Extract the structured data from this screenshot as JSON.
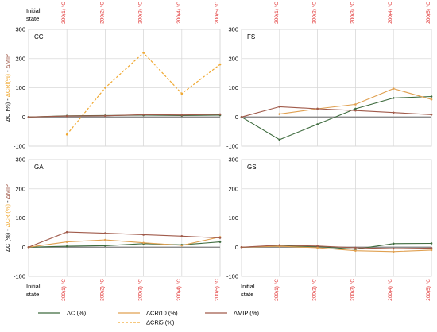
{
  "chart_data": {
    "type": "line",
    "categories": [
      "Initial state",
      "200(1) °C",
      "200(2) °C",
      "200(3) °C",
      "200(4) °C",
      "200(5) °C"
    ],
    "header_label": "Initial state",
    "footer_label": "Initial state",
    "ylim": [
      -100,
      300
    ],
    "yticks": [
      "300",
      "200",
      "100",
      "0",
      "-100"
    ],
    "ylabel": {
      "c": "ΔC (%)",
      "sep": " - ",
      "cri": "ΔCRi(%)",
      "mip": "ΔMIP"
    },
    "colors": {
      "dc": "#3e6b3e",
      "cri10": "#e0a050",
      "cri5": "#f0a830",
      "mip": "#a05a4a",
      "grid": "#d9d9d9",
      "axis": "#7f7f7f",
      "tick_red": "#e03030"
    },
    "legend": [
      {
        "key": "dc",
        "label": "ΔC (%)",
        "dashed": false
      },
      {
        "key": "cri10",
        "label": "ΔCRi10 (%)",
        "dashed": false
      },
      {
        "key": "mip",
        "label": "ΔMIP (%)",
        "dashed": false
      },
      {
        "key": "cri5",
        "label": "ΔCRi5 (%)",
        "dashed": true
      }
    ],
    "panels": [
      {
        "title": "CC",
        "series": [
          {
            "key": "cri5",
            "values": [
              null,
              -60,
              100,
              220,
              80,
              180
            ]
          },
          {
            "key": "dc",
            "values": [
              0,
              4,
              5,
              6,
              5,
              6
            ]
          },
          {
            "key": "mip",
            "values": [
              0,
              3,
              4,
              8,
              7,
              9
            ]
          }
        ]
      },
      {
        "title": "FS",
        "series": [
          {
            "key": "dc",
            "values": [
              0,
              -78,
              -25,
              28,
              65,
              70
            ]
          },
          {
            "key": "cri10",
            "values": [
              null,
              10,
              28,
              43,
              97,
              60
            ]
          },
          {
            "key": "mip",
            "values": [
              0,
              35,
              28,
              22,
              15,
              8
            ]
          }
        ]
      },
      {
        "title": "GA",
        "series": [
          {
            "key": "dc",
            "values": [
              0,
              3,
              5,
              12,
              8,
              18
            ]
          },
          {
            "key": "cri10",
            "values": [
              0,
              18,
              25,
              15,
              6,
              35
            ]
          },
          {
            "key": "mip",
            "values": [
              0,
              52,
              48,
              43,
              38,
              32
            ]
          }
        ]
      },
      {
        "title": "GS",
        "series": [
          {
            "key": "dc",
            "values": [
              0,
              4,
              2,
              -7,
              12,
              13
            ]
          },
          {
            "key": "cri10",
            "values": [
              0,
              3,
              -2,
              -12,
              -15,
              -10
            ]
          },
          {
            "key": "mip",
            "values": [
              0,
              7,
              4,
              -2,
              -5,
              -3
            ]
          }
        ]
      }
    ]
  }
}
